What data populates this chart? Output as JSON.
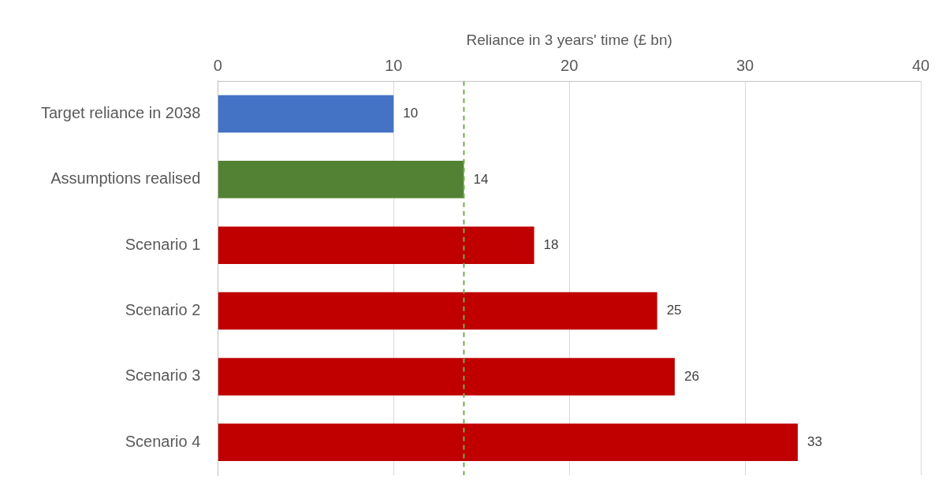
{
  "chart_data": {
    "type": "bar",
    "orientation": "horizontal",
    "xlabel": "Reliance in 3 years' time (£ bn)",
    "categories": [
      "Target reliance in 2038",
      "Assumptions realised",
      "Scenario 1",
      "Scenario 2",
      "Scenario 3",
      "Scenario 4"
    ],
    "values": [
      10,
      14,
      18,
      25,
      26,
      33
    ],
    "colors": [
      "#4472c4",
      "#548235",
      "#c00000",
      "#c00000",
      "#c00000",
      "#c00000"
    ],
    "xlim": [
      0,
      40
    ],
    "xticks": [
      0,
      10,
      20,
      30,
      40
    ],
    "grid": "x",
    "data_labels": true,
    "ref_lines": [
      {
        "axis": "x",
        "value": 14,
        "color": "#70ad47",
        "line_style": "dashed"
      }
    ]
  }
}
